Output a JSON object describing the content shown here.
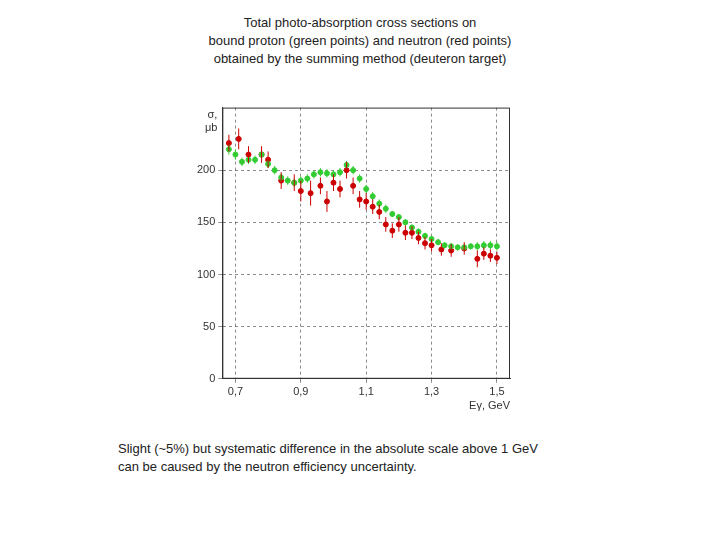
{
  "chart_data": {
    "type": "scatter",
    "title": [
      "Total photo-absorption cross sections on",
      "bound proton (green points) and neutron (red points)",
      "obtained by the summing method (deuteron target)"
    ],
    "annotations": [
      "Slight (~5%) but systematic difference in the absolute scale above 1 GeV",
      "can be caused by the neutron efficiency uncertainty."
    ],
    "x_label": "Eγ, GeV",
    "y_label": [
      "σ,",
      "μb"
    ],
    "xlim": [
      0.66,
      1.54
    ],
    "ylim": [
      0,
      260
    ],
    "xticks": [
      {
        "value": 0.7,
        "label": "0,7"
      },
      {
        "value": 0.9,
        "label": "0,9"
      },
      {
        "value": 1.1,
        "label": "1,1"
      },
      {
        "value": 1.3,
        "label": "1,3"
      },
      {
        "value": 1.5,
        "label": "1,5"
      }
    ],
    "yticks": [
      0,
      50,
      100,
      150,
      200
    ],
    "grid": true,
    "series": [
      {
        "color": "#33cc33",
        "marker": "circle",
        "x": [
          0.68,
          0.7,
          0.72,
          0.74,
          0.76,
          0.78,
          0.8,
          0.82,
          0.84,
          0.86,
          0.88,
          0.9,
          0.92,
          0.94,
          0.96,
          0.98,
          1.0,
          1.02,
          1.04,
          1.06,
          1.08,
          1.1,
          1.12,
          1.14,
          1.16,
          1.18,
          1.2,
          1.22,
          1.24,
          1.26,
          1.28,
          1.3,
          1.32,
          1.34,
          1.36,
          1.38,
          1.4,
          1.42,
          1.44,
          1.46,
          1.48,
          1.5
        ],
        "values": [
          220,
          215,
          208,
          210,
          210,
          215,
          206,
          200,
          193,
          190,
          188,
          190,
          192,
          196,
          198,
          197,
          196,
          198,
          205,
          200,
          192,
          182,
          175,
          168,
          163,
          158,
          155,
          150,
          145,
          141,
          137,
          134,
          131,
          128,
          127,
          126,
          126,
          127,
          127,
          128,
          128,
          127
        ],
        "errors": [
          5,
          5,
          4,
          4,
          4,
          4,
          4,
          4,
          4,
          4,
          4,
          4,
          4,
          4,
          4,
          4,
          4,
          4,
          4,
          4,
          4,
          4,
          4,
          4,
          4,
          3,
          3,
          3,
          3,
          3,
          3,
          3,
          3,
          3,
          3,
          3,
          3,
          3,
          4,
          4,
          4,
          4
        ]
      },
      {
        "color": "#cc0000",
        "marker": "circle",
        "x": [
          0.68,
          0.71,
          0.74,
          0.78,
          0.8,
          0.84,
          0.88,
          0.9,
          0.93,
          0.96,
          0.98,
          1.0,
          1.02,
          1.04,
          1.06,
          1.08,
          1.1,
          1.12,
          1.14,
          1.16,
          1.18,
          1.2,
          1.22,
          1.24,
          1.26,
          1.28,
          1.3,
          1.33,
          1.36,
          1.4,
          1.44,
          1.46,
          1.48,
          1.5
        ],
        "values": [
          226,
          230,
          215,
          215,
          210,
          190,
          188,
          180,
          178,
          185,
          170,
          188,
          182,
          200,
          185,
          172,
          170,
          165,
          160,
          148,
          142,
          148,
          140,
          140,
          135,
          130,
          128,
          124,
          123,
          125,
          115,
          120,
          118,
          116
        ],
        "errors": [
          8,
          10,
          8,
          8,
          8,
          8,
          8,
          10,
          12,
          8,
          10,
          8,
          8,
          8,
          8,
          8,
          8,
          7,
          7,
          7,
          7,
          7,
          7,
          6,
          6,
          6,
          6,
          6,
          6,
          6,
          8,
          6,
          6,
          6
        ]
      }
    ]
  }
}
